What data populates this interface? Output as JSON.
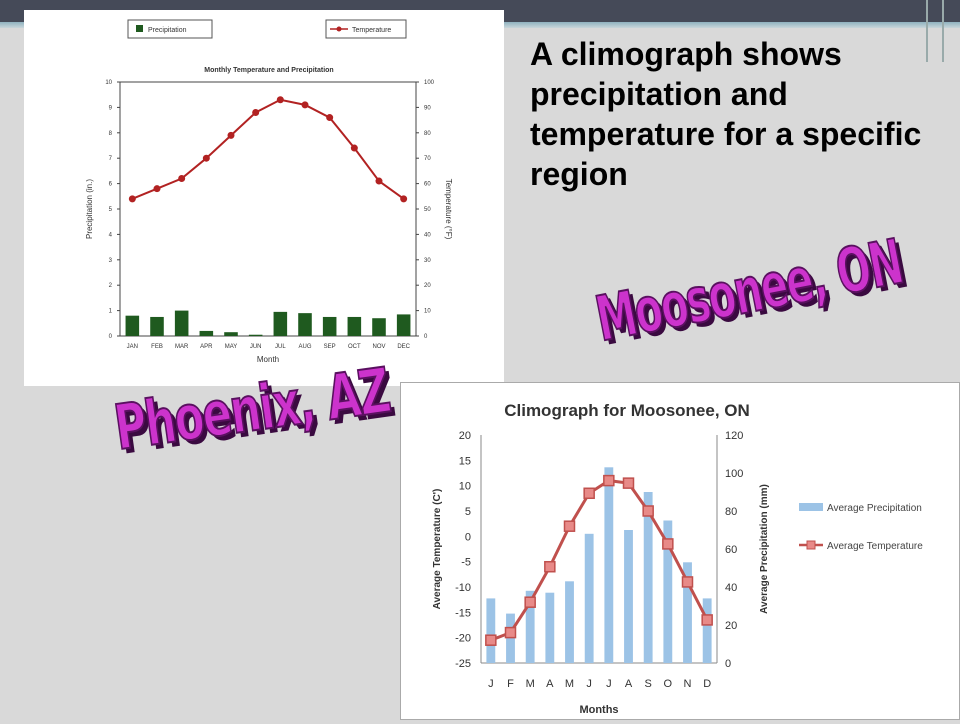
{
  "slide": {
    "heading": "A climograph shows precipitation and temperature for a specific region",
    "label_phoenix": "Phoenix, AZ",
    "label_moosonee": "Moosonee, ON"
  },
  "chart_data": [
    {
      "type": "bar",
      "title": "Monthly Temperature and Precipitation",
      "xlabel": "Month",
      "ylabel": "Precipitation (in.)",
      "y2label": "Temperature (°F)",
      "categories": [
        "JAN",
        "FEB",
        "MAR",
        "APR",
        "MAY",
        "JUN",
        "JUL",
        "AUG",
        "SEP",
        "OCT",
        "NOV",
        "DEC"
      ],
      "series": [
        {
          "name": "Precipitation",
          "type": "bar",
          "axis": "left",
          "color": "#1f5a1f",
          "values": [
            0.8,
            0.75,
            1.0,
            0.2,
            0.15,
            0.05,
            0.95,
            0.9,
            0.75,
            0.75,
            0.7,
            0.85
          ]
        },
        {
          "name": "Temperature",
          "type": "line",
          "axis": "right",
          "color": "#b22222",
          "values": [
            54,
            58,
            62,
            70,
            79,
            88,
            93,
            91,
            86,
            74,
            61,
            54
          ]
        }
      ],
      "ylim": [
        0,
        10
      ],
      "yticks": [
        0,
        1,
        2,
        3,
        4,
        5,
        6,
        7,
        8,
        9,
        10
      ],
      "y2lim": [
        0,
        100
      ],
      "y2ticks": [
        0,
        10,
        20,
        30,
        40,
        50,
        60,
        70,
        80,
        90,
        100
      ],
      "legend": "top",
      "grid": false
    },
    {
      "type": "bar",
      "title": "Climograph for Moosonee, ON",
      "xlabel": "Months",
      "ylabel": "Average Temperature (C')",
      "y2label": "Average Precipitation (mm)",
      "categories": [
        "J",
        "F",
        "M",
        "A",
        "M",
        "J",
        "J",
        "A",
        "S",
        "O",
        "N",
        "D"
      ],
      "series": [
        {
          "name": "Average Precipitation",
          "type": "bar",
          "axis": "right",
          "color": "#9cc3e6",
          "values": [
            34,
            26,
            38,
            37,
            43,
            68,
            103,
            70,
            90,
            75,
            53,
            34
          ]
        },
        {
          "name": "Average Temperature",
          "type": "line",
          "axis": "left",
          "color": "#c0504d",
          "values": [
            -20.5,
            -19,
            -13,
            -6,
            2,
            8.5,
            11,
            10.5,
            5,
            -1.5,
            -9,
            -16.5
          ]
        }
      ],
      "ylim": [
        -25,
        20
      ],
      "yticks": [
        20,
        15,
        10,
        5,
        0,
        -5,
        -10,
        -15,
        -20,
        -25
      ],
      "y2lim": [
        0,
        120
      ],
      "y2ticks": [
        120,
        100,
        80,
        60,
        40,
        20,
        0
      ],
      "legend": "right",
      "grid": false
    }
  ]
}
